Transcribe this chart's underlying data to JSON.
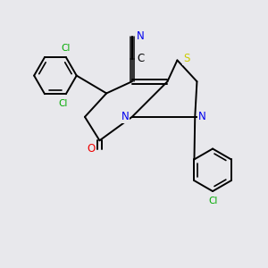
{
  "background_color": "#e8e8ec",
  "atom_colors": {
    "C": "#000000",
    "N": "#0000ee",
    "O": "#ee0000",
    "S": "#cccc00",
    "Cl": "#00aa00"
  },
  "bond_color": "#000000",
  "figsize": [
    3.0,
    3.0
  ],
  "dpi": 100
}
